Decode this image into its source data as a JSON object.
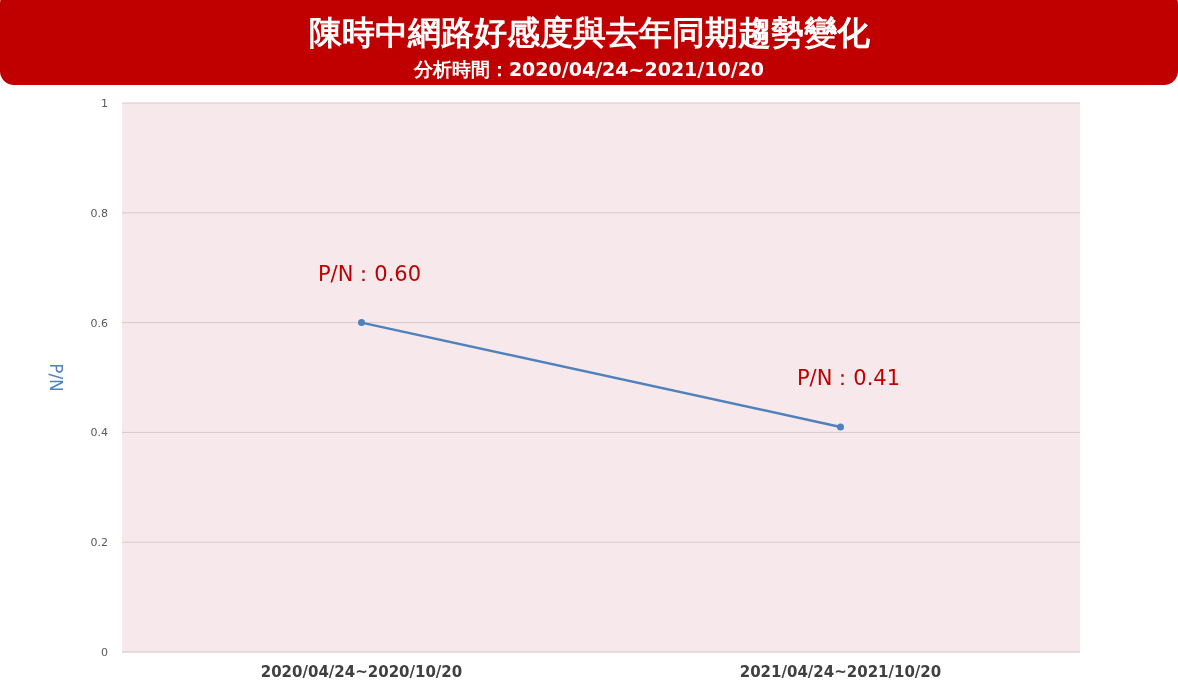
{
  "chart_data": {
    "type": "line",
    "title": "陳時中網路好感度與去年同期趨勢變化",
    "subtitle": "分析時間：2020/04/24~2021/10/20",
    "ylabel": "P/N",
    "categories": [
      "2020/04/24~2020/10/20",
      "2021/04/24~2021/10/20"
    ],
    "series": [
      {
        "color": "#4f81bd",
        "values": [
          0.6,
          0.41
        ],
        "value_labels": [
          "P/N：0.60",
          "P/N：0.41"
        ]
      }
    ],
    "ylim": [
      0,
      1
    ],
    "yticks": [
      0,
      0.2,
      0.4,
      0.6,
      0.8,
      1
    ],
    "grid": "y",
    "marker": "circle"
  }
}
